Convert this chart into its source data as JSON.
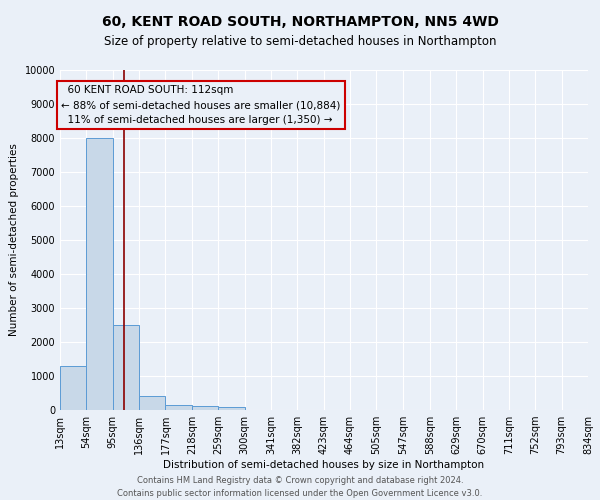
{
  "title": "60, KENT ROAD SOUTH, NORTHAMPTON, NN5 4WD",
  "subtitle": "Size of property relative to semi-detached houses in Northampton",
  "xlabel": "Distribution of semi-detached houses by size in Northampton",
  "ylabel": "Number of semi-detached properties",
  "footer_line1": "Contains HM Land Registry data © Crown copyright and database right 2024.",
  "footer_line2": "Contains public sector information licensed under the Open Government Licence v3.0.",
  "bin_edges": [
    13,
    54,
    95,
    136,
    177,
    218,
    259,
    300,
    341,
    382,
    423,
    464,
    505,
    547,
    588,
    629,
    670,
    711,
    752,
    793,
    834
  ],
  "bin_labels": [
    "13sqm",
    "54sqm",
    "95sqm",
    "136sqm",
    "177sqm",
    "218sqm",
    "259sqm",
    "300sqm",
    "341sqm",
    "382sqm",
    "423sqm",
    "464sqm",
    "505sqm",
    "547sqm",
    "588sqm",
    "629sqm",
    "670sqm",
    "711sqm",
    "752sqm",
    "793sqm",
    "834sqm"
  ],
  "bar_heights": [
    1300,
    8000,
    2500,
    400,
    150,
    120,
    100,
    0,
    0,
    0,
    0,
    0,
    0,
    0,
    0,
    0,
    0,
    0,
    0,
    0
  ],
  "bar_color": "#c8d8e8",
  "bar_edge_color": "#5b9bd5",
  "property_size": 112,
  "property_label": "60 KENT ROAD SOUTH: 112sqm",
  "pct_smaller": 88,
  "pct_larger": 11,
  "count_smaller": 10884,
  "count_larger": 1350,
  "vline_color": "#8b0000",
  "annotation_box_edge": "#cc0000",
  "ylim": [
    0,
    10000
  ],
  "yticks": [
    0,
    1000,
    2000,
    3000,
    4000,
    5000,
    6000,
    7000,
    8000,
    9000,
    10000
  ],
  "bg_color": "#eaf0f8",
  "grid_color": "#ffffff",
  "title_fontsize": 10,
  "subtitle_fontsize": 8.5,
  "axis_label_fontsize": 7.5,
  "tick_fontsize": 7,
  "annotation_fontsize": 7.5,
  "ylabel_fontsize": 7.5
}
